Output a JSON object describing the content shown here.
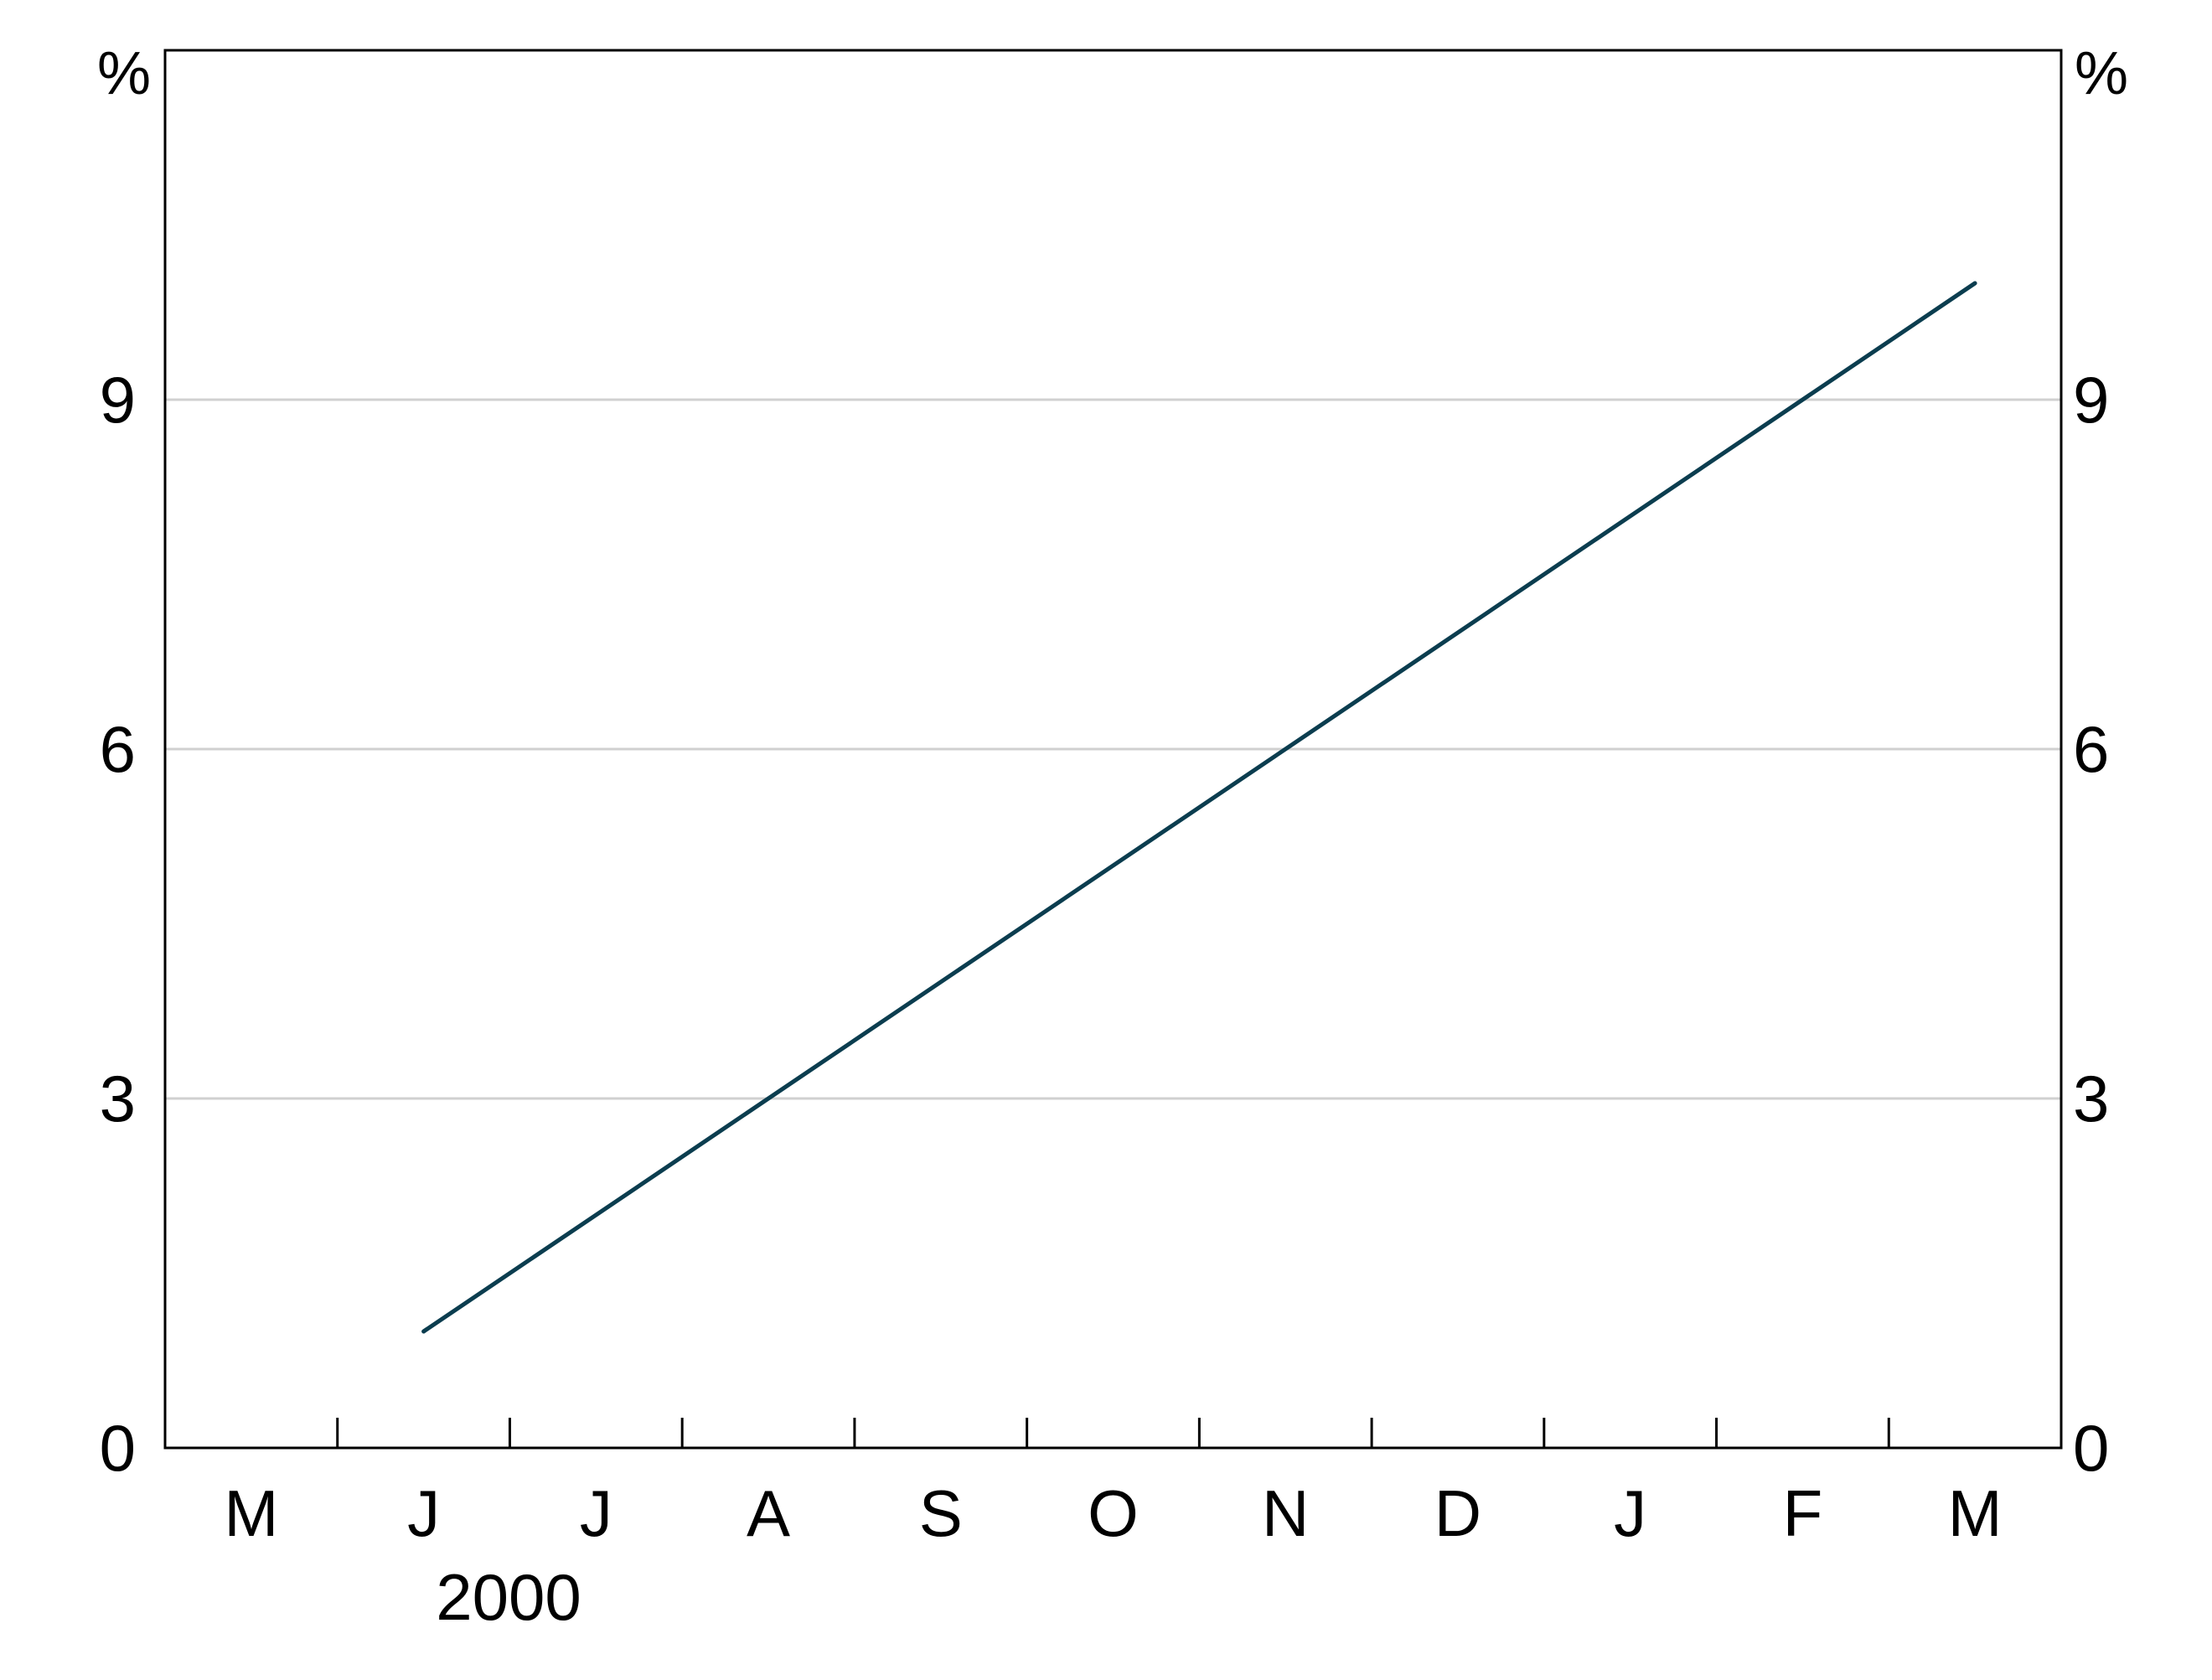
{
  "chart_data": {
    "type": "line",
    "title": "",
    "xlabel": "",
    "ylabel": "",
    "y_unit_left": "%",
    "y_unit_right": "%",
    "ylim": [
      0,
      12
    ],
    "yticks": [
      0,
      3,
      6,
      9
    ],
    "grid": true,
    "x_month_labels": [
      "M",
      "J",
      "J",
      "A",
      "S",
      "O",
      "N",
      "D",
      "J",
      "F",
      "M"
    ],
    "x_year_label": "2000",
    "x_range": [
      "2000-05",
      "2001-03"
    ],
    "series": [
      {
        "color": "#0b3d4f",
        "x": [
          "2000-06",
          "2001-03"
        ],
        "y": [
          1.0,
          10.0
        ]
      }
    ]
  }
}
